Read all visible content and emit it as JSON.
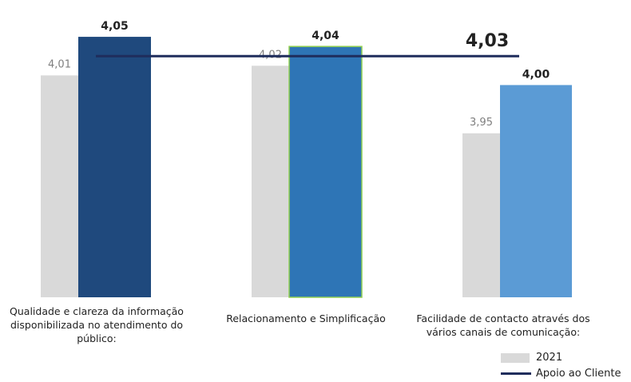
{
  "chart_data": {
    "type": "bar",
    "categories": [
      "Qualidade e clareza da informação disponibilizada no atendimento do público:",
      "Relacionamento e Simplificação",
      "Facilidade de contacto através dos vários canais de comunicação:"
    ],
    "series": [
      {
        "name": "2021",
        "values": [
          4.01,
          4.02,
          3.95
        ],
        "labels": [
          "4,01",
          "4,02",
          "3,95"
        ],
        "color": "#d9d9d9"
      },
      {
        "values": [
          4.05,
          4.04,
          4.0
        ],
        "labels": [
          "4,05",
          "4,04",
          "4,00"
        ],
        "colors": [
          "#1f497d",
          "#2e75b6",
          "#5b9bd5"
        ]
      }
    ],
    "reference_line": {
      "name": "Apoio ao Cliente",
      "value": 4.03,
      "label": "4,03",
      "color": "#1f2d5c"
    },
    "ylim": [
      3.78,
      4.06
    ],
    "grid": false,
    "legend_position": "bottom-right"
  },
  "legend": {
    "series1": "2021",
    "line": "Apoio ao Cliente"
  }
}
